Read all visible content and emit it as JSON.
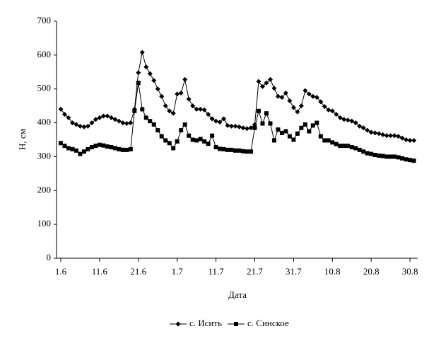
{
  "chart_data": {
    "type": "line",
    "y_label": "Н, см",
    "x_label": "Дата",
    "categories": [
      "1.6",
      null,
      null,
      null,
      null,
      null,
      null,
      null,
      null,
      null,
      "11.6",
      null,
      null,
      null,
      null,
      null,
      null,
      null,
      null,
      null,
      "21.6",
      null,
      null,
      null,
      null,
      null,
      null,
      null,
      null,
      null,
      "1.7",
      null,
      null,
      null,
      null,
      null,
      null,
      null,
      null,
      null,
      "11.7",
      null,
      null,
      null,
      null,
      null,
      null,
      null,
      null,
      null,
      "21.7",
      null,
      null,
      null,
      null,
      null,
      null,
      null,
      null,
      null,
      "31.7",
      null,
      null,
      null,
      null,
      null,
      null,
      null,
      null,
      null,
      "10.8",
      null,
      null,
      null,
      null,
      null,
      null,
      null,
      null,
      null,
      "20.8",
      null,
      null,
      null,
      null,
      null,
      null,
      null,
      null,
      null,
      "30.8",
      null
    ],
    "series": [
      {
        "name": "с. Исить",
        "color": "#000000",
        "marker": "diamond",
        "values": [
          440,
          425,
          415,
          400,
          395,
          390,
          388,
          390,
          400,
          410,
          415,
          420,
          420,
          415,
          410,
          405,
          400,
          398,
          400,
          440,
          548,
          608,
          565,
          545,
          525,
          500,
          478,
          450,
          435,
          428,
          485,
          488,
          528,
          470,
          450,
          440,
          440,
          438,
          425,
          412,
          405,
          402,
          412,
          392,
          390,
          390,
          388,
          385,
          383,
          385,
          395,
          522,
          507,
          518,
          528,
          502,
          478,
          475,
          488,
          465,
          445,
          432,
          450,
          495,
          485,
          478,
          475,
          462,
          448,
          438,
          435,
          425,
          415,
          410,
          408,
          405,
          400,
          390,
          385,
          378,
          372,
          370,
          368,
          365,
          362,
          362,
          362,
          360,
          355,
          350,
          348,
          348
        ]
      },
      {
        "name": "с. Синское",
        "color": "#000000",
        "marker": "square",
        "values": [
          340,
          332,
          325,
          322,
          318,
          308,
          315,
          322,
          328,
          332,
          335,
          333,
          330,
          328,
          325,
          322,
          320,
          320,
          322,
          435,
          518,
          440,
          415,
          405,
          395,
          378,
          360,
          348,
          340,
          325,
          345,
          378,
          395,
          362,
          350,
          348,
          352,
          345,
          338,
          362,
          328,
          323,
          322,
          320,
          320,
          318,
          318,
          316,
          315,
          315,
          385,
          435,
          398,
          428,
          398,
          348,
          380,
          370,
          375,
          360,
          350,
          368,
          385,
          395,
          375,
          392,
          400,
          360,
          348,
          348,
          342,
          337,
          332,
          332,
          332,
          328,
          325,
          320,
          315,
          310,
          308,
          305,
          303,
          302,
          300,
          300,
          300,
          298,
          295,
          292,
          290,
          288
        ]
      }
    ],
    "ylim": [
      0,
      700
    ],
    "yticks": [
      0,
      100,
      200,
      300,
      400,
      500,
      600,
      700
    ],
    "grid": false,
    "legend": "bottom"
  }
}
